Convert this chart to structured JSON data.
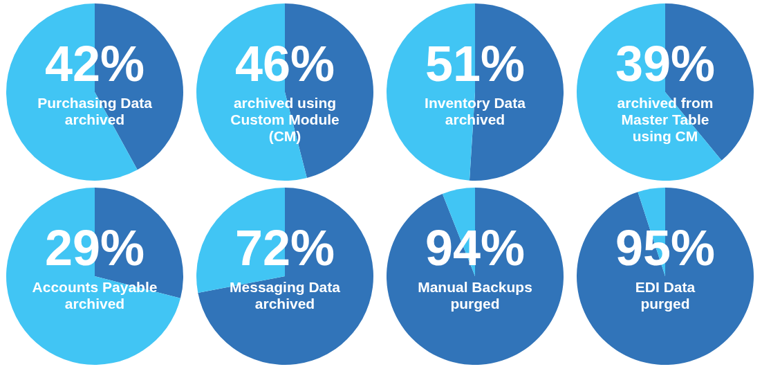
{
  "chart_data": [
    {
      "type": "pie",
      "categories": [
        null,
        null
      ],
      "values": [
        42,
        58
      ],
      "colors": [
        "#3174b9",
        "#41c5f4"
      ],
      "value_labels": [
        "42%",
        null
      ],
      "annotations": [
        "Purchasing Data\narchived"
      ]
    },
    {
      "type": "pie",
      "categories": [
        null,
        null
      ],
      "values": [
        46,
        54
      ],
      "colors": [
        "#3174b9",
        "#41c5f4"
      ],
      "value_labels": [
        "46%",
        null
      ],
      "annotations": [
        "archived using\nCustom Module\n(CM)"
      ]
    },
    {
      "type": "pie",
      "categories": [
        null,
        null
      ],
      "values": [
        51,
        49
      ],
      "colors": [
        "#3174b9",
        "#41c5f4"
      ],
      "value_labels": [
        "51%",
        null
      ],
      "annotations": [
        "Inventory Data\narchived"
      ]
    },
    {
      "type": "pie",
      "categories": [
        null,
        null
      ],
      "values": [
        39,
        61
      ],
      "colors": [
        "#3174b9",
        "#41c5f4"
      ],
      "value_labels": [
        "39%",
        null
      ],
      "annotations": [
        "archived from\nMaster Table\nusing CM"
      ]
    },
    {
      "type": "pie",
      "categories": [
        null,
        null
      ],
      "values": [
        29,
        71
      ],
      "colors": [
        "#3174b9",
        "#41c5f4"
      ],
      "value_labels": [
        "29%",
        null
      ],
      "annotations": [
        "Accounts Payable\narchived"
      ]
    },
    {
      "type": "pie",
      "categories": [
        null,
        null
      ],
      "values": [
        72,
        28
      ],
      "colors": [
        "#3174b9",
        "#41c5f4"
      ],
      "value_labels": [
        "72%",
        null
      ],
      "annotations": [
        "Messaging Data\narchived"
      ]
    },
    {
      "type": "pie",
      "categories": [
        null,
        null
      ],
      "values": [
        94,
        6
      ],
      "colors": [
        "#3174b9",
        "#41c5f4"
      ],
      "value_labels": [
        "94%",
        null
      ],
      "annotations": [
        "Manual Backups\npurged"
      ]
    },
    {
      "type": "pie",
      "categories": [
        null,
        null
      ],
      "values": [
        95,
        5
      ],
      "colors": [
        "#3174b9",
        "#41c5f4"
      ],
      "value_labels": [
        "95%",
        null
      ],
      "annotations": [
        "EDI Data\npurged"
      ]
    }
  ]
}
